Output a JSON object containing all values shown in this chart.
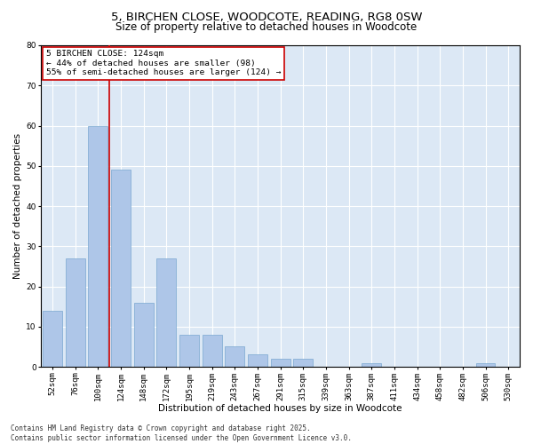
{
  "title1": "5, BIRCHEN CLOSE, WOODCOTE, READING, RG8 0SW",
  "title2": "Size of property relative to detached houses in Woodcote",
  "xlabel": "Distribution of detached houses by size in Woodcote",
  "ylabel": "Number of detached properties",
  "categories": [
    "52sqm",
    "76sqm",
    "100sqm",
    "124sqm",
    "148sqm",
    "172sqm",
    "195sqm",
    "219sqm",
    "243sqm",
    "267sqm",
    "291sqm",
    "315sqm",
    "339sqm",
    "363sqm",
    "387sqm",
    "411sqm",
    "434sqm",
    "458sqm",
    "482sqm",
    "506sqm",
    "530sqm"
  ],
  "values": [
    14,
    27,
    60,
    49,
    16,
    27,
    8,
    8,
    5,
    3,
    2,
    2,
    0,
    0,
    1,
    0,
    0,
    0,
    0,
    1,
    0
  ],
  "bar_color": "#aec6e8",
  "bar_edge_color": "#7aa8d0",
  "vline_index": 3,
  "vline_color": "#cc0000",
  "annotation_line1": "5 BIRCHEN CLOSE: 124sqm",
  "annotation_line2": "← 44% of detached houses are smaller (98)",
  "annotation_line3": "55% of semi-detached houses are larger (124) →",
  "annotation_box_color": "#cc0000",
  "ylim": [
    0,
    80
  ],
  "yticks": [
    0,
    10,
    20,
    30,
    40,
    50,
    60,
    70,
    80
  ],
  "background_color": "#dce8f5",
  "grid_color": "#ffffff",
  "footer_text": "Contains HM Land Registry data © Crown copyright and database right 2025.\nContains public sector information licensed under the Open Government Licence v3.0.",
  "title1_fontsize": 9.5,
  "title2_fontsize": 8.5,
  "xlabel_fontsize": 7.5,
  "ylabel_fontsize": 7.5,
  "tick_fontsize": 6.5,
  "annotation_fontsize": 6.8,
  "footer_fontsize": 5.5
}
